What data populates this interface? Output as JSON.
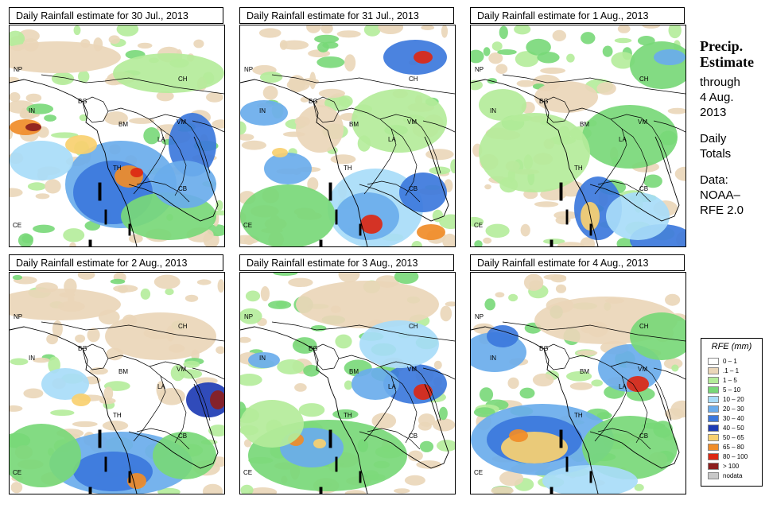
{
  "panels": [
    {
      "title": "Daily Rainfall estimate for  30 Jul., 2013",
      "scheme": 0
    },
    {
      "title": "Daily Rainfall estimate for  31 Jul., 2013",
      "scheme": 1
    },
    {
      "title": "Daily Rainfall estimate for  1 Aug., 2013",
      "scheme": 2
    },
    {
      "title": "Daily Rainfall estimate for  2 Aug., 2013",
      "scheme": 3
    },
    {
      "title": "Daily Rainfall estimate for  3 Aug., 2013",
      "scheme": 4
    },
    {
      "title": "Daily Rainfall estimate for  4 Aug., 2013",
      "scheme": 5
    }
  ],
  "country_labels": [
    "NP",
    "CH",
    "IN",
    "BG",
    "BM",
    "VM",
    "LA",
    "TH",
    "CB",
    "CE"
  ],
  "side": {
    "heading1": "Precip.",
    "heading2": "Estimate",
    "through": "through",
    "date1": "4 Aug.",
    "date2": "2013",
    "daily1": "Daily",
    "daily2": "Totals",
    "data1": "Data:",
    "data2": "NOAA–",
    "data3": "RFE 2.0"
  },
  "legend": {
    "title": "RFE (mm)",
    "items": [
      {
        "label": "0 – 1",
        "color": "#ffffff"
      },
      {
        "label": ".1 – 1",
        "color": "#ead6b8"
      },
      {
        "label": "1 – 5",
        "color": "#b4ec9a"
      },
      {
        "label": "5 – 10",
        "color": "#78d878"
      },
      {
        "label": "10 – 20",
        "color": "#a8dcf8"
      },
      {
        "label": "20 – 30",
        "color": "#6aacec"
      },
      {
        "label": "30 – 40",
        "color": "#3c78dc"
      },
      {
        "label": "40 – 50",
        "color": "#1e3cb4"
      },
      {
        "label": "50 – 65",
        "color": "#f8d070"
      },
      {
        "label": "65 – 80",
        "color": "#f08c28"
      },
      {
        "label": "80 – 100",
        "color": "#dc2814"
      },
      {
        "label": "> 100",
        "color": "#8c1e1e"
      },
      {
        "label": "nodata",
        "color": "#c8c8c8"
      }
    ]
  }
}
